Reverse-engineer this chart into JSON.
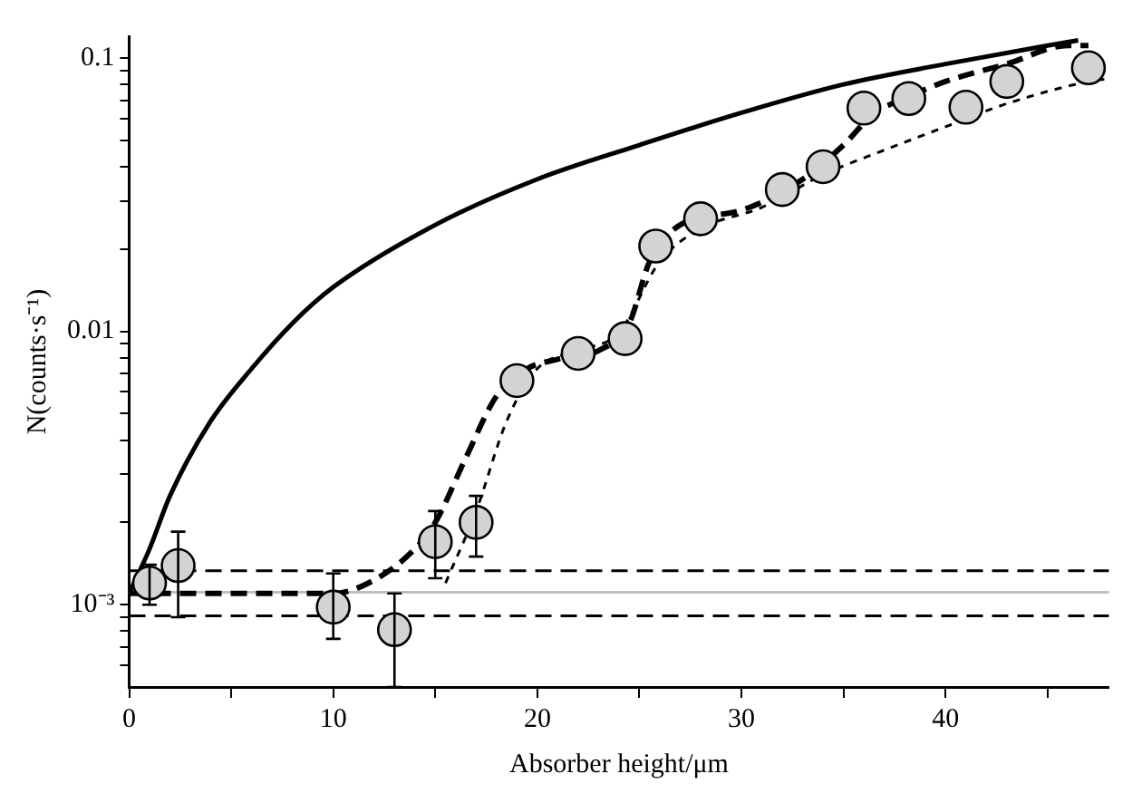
{
  "chart_data": {
    "type": "scatter",
    "xlabel": "Absorber height/μm",
    "ylabel": "N(counts·s⁻¹)",
    "log": "y",
    "grid": false,
    "legend": false,
    "xlim": [
      0,
      48
    ],
    "xticks": [
      0,
      {
        "value": 5,
        "label": null
      },
      10,
      {
        "value": 15,
        "label": null
      },
      20,
      {
        "value": 25,
        "label": null
      },
      30,
      {
        "value": 35,
        "label": null
      },
      40,
      {
        "value": 45,
        "label": null
      }
    ],
    "ylim": [
      0.0005,
      0.12
    ],
    "yticks": [
      {
        "value": 0.0006,
        "label": null
      },
      {
        "value": 0.0007,
        "label": null
      },
      {
        "value": 0.0008,
        "label": null
      },
      {
        "value": 0.0009,
        "label": null
      },
      {
        "value": 0.001,
        "label": "10⁻³"
      },
      {
        "value": 0.002,
        "label": null
      },
      {
        "value": 0.003,
        "label": null
      },
      {
        "value": 0.004,
        "label": null
      },
      {
        "value": 0.005,
        "label": null
      },
      {
        "value": 0.006,
        "label": null
      },
      {
        "value": 0.007,
        "label": null
      },
      {
        "value": 0.008,
        "label": null
      },
      {
        "value": 0.009,
        "label": null
      },
      0.01,
      {
        "value": 0.02,
        "label": null
      },
      {
        "value": 0.03,
        "label": null
      },
      {
        "value": 0.04,
        "label": null
      },
      {
        "value": 0.05,
        "label": null
      },
      {
        "value": 0.06,
        "label": null
      },
      {
        "value": 0.07,
        "label": null
      },
      {
        "value": 0.08,
        "label": null
      },
      {
        "value": 0.09,
        "label": null
      },
      0.1
    ],
    "ref_lines": [
      {
        "axis": "y",
        "value": 0.00133,
        "color": "#000000",
        "line_style": "dashed"
      },
      {
        "axis": "y",
        "value": 0.00111,
        "color": "#c0c0c0",
        "line_style": "solid"
      },
      {
        "axis": "y",
        "value": 0.00091,
        "color": "#000000",
        "line_style": "dashed"
      }
    ],
    "series": [
      {
        "type": "line",
        "color": "#000000",
        "line_style": "solid",
        "marker": "none",
        "x": [
          0,
          1,
          2,
          4,
          6,
          8,
          10,
          15,
          20,
          25,
          30,
          35,
          40,
          45,
          46.5
        ],
        "values": [
          0.0011,
          0.0016,
          0.0025,
          0.0047,
          0.0073,
          0.0107,
          0.0145,
          0.0245,
          0.036,
          0.048,
          0.063,
          0.08,
          0.095,
          0.111,
          0.116
        ]
      },
      {
        "type": "line",
        "color": "#000000",
        "line_style": "dashed",
        "marker": "none",
        "x": [
          0,
          10,
          12,
          14,
          15,
          16.5,
          18,
          19.5,
          21,
          23,
          24.5,
          25.5,
          27,
          30,
          33,
          35,
          36.5,
          38,
          40,
          43,
          46,
          47
        ],
        "values": [
          0.0011,
          0.0011,
          0.00123,
          0.0016,
          0.002,
          0.00345,
          0.0058,
          0.0073,
          0.0079,
          0.0085,
          0.0107,
          0.018,
          0.0245,
          0.0277,
          0.036,
          0.048,
          0.0627,
          0.071,
          0.082,
          0.095,
          0.111,
          0.111
        ]
      },
      {
        "type": "line",
        "color": "#000000",
        "line_style": "dotted",
        "marker": "none",
        "x": [
          15.5,
          17,
          18.5,
          20,
          22,
          24,
          26,
          28,
          31,
          34,
          37,
          40,
          43,
          47,
          48
        ],
        "values": [
          0.0012,
          0.0022,
          0.0047,
          0.0073,
          0.0085,
          0.0099,
          0.018,
          0.0237,
          0.0284,
          0.0374,
          0.046,
          0.056,
          0.068,
          0.082,
          0.084
        ]
      },
      {
        "type": "scatter",
        "color": "#d3d3d3",
        "marker": "circle",
        "x": [
          1,
          2.4,
          10,
          13,
          15,
          17,
          19,
          22,
          24.3,
          25.8,
          28,
          32,
          34,
          36,
          38.2,
          41,
          43,
          47
        ],
        "values": [
          0.0012,
          0.00139,
          0.00098,
          0.00081,
          0.0017,
          0.002,
          0.0066,
          0.0083,
          0.0094,
          0.0205,
          0.0258,
          0.033,
          0.04,
          0.0655,
          0.071,
          0.066,
          0.082,
          0.092
        ],
        "errors": [
          [
            0.001,
            0.0014
          ],
          [
            0.0009,
            0.00185
          ],
          [
            0.00075,
            0.0013
          ],
          [
            0.0005,
            0.0011
          ],
          [
            0.00125,
            0.0022
          ],
          [
            0.0015,
            0.0025
          ],
          null,
          null,
          null,
          null,
          null,
          null,
          null,
          null,
          null,
          null,
          null,
          null
        ]
      }
    ]
  }
}
